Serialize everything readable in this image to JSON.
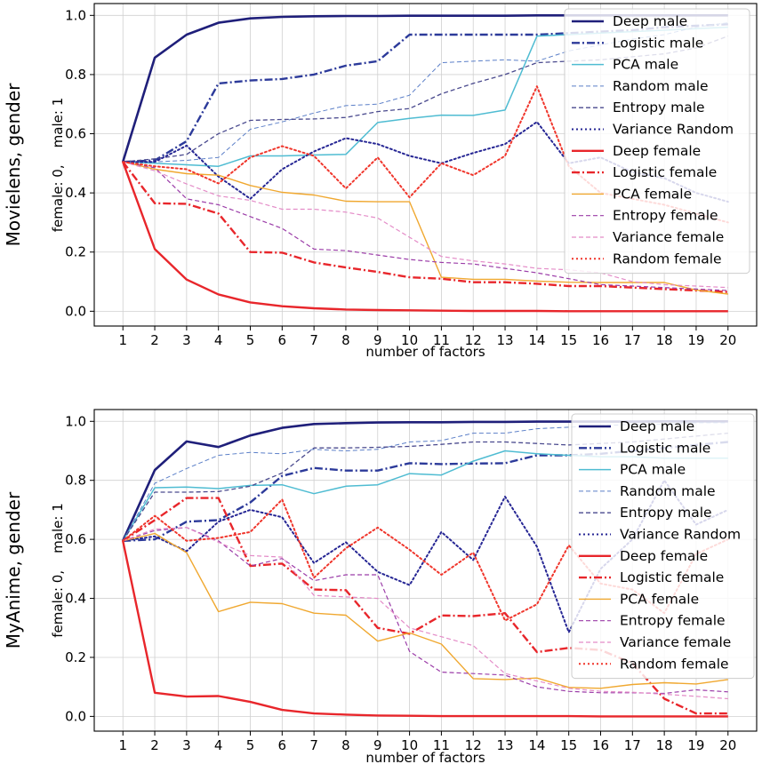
{
  "chart_data": [
    {
      "type": "line",
      "row_label": "Movielens, gender",
      "ylabel": "female: 0,    male: 1",
      "xlabel": "number of factors",
      "x": [
        1,
        2,
        3,
        4,
        5,
        6,
        7,
        8,
        9,
        10,
        11,
        12,
        13,
        14,
        15,
        16,
        17,
        18,
        19,
        20
      ],
      "xlim": [
        0.1,
        20.9
      ],
      "ylim": [
        -0.05,
        1.04
      ],
      "yticks": [
        "0.0",
        "0.2",
        "0.4",
        "0.6",
        "0.8",
        "1.0"
      ],
      "grid": true,
      "legend_position": "top-right",
      "series": [
        {
          "name": "Deep male",
          "color": "#1f1f7a",
          "dash": "solid",
          "width": 2.6,
          "values": [
            0.505,
            0.857,
            0.935,
            0.975,
            0.99,
            0.995,
            0.997,
            0.998,
            0.998,
            0.999,
            0.999,
            0.999,
            0.999,
            1.0,
            1.0,
            1.0,
            1.0,
            1.0,
            1.0,
            1.0
          ]
        },
        {
          "name": "Logistic male",
          "color": "#2c3a9a",
          "dash": "dashdot",
          "width": 2.4,
          "values": [
            0.505,
            0.51,
            0.575,
            0.77,
            0.78,
            0.785,
            0.8,
            0.83,
            0.845,
            0.935,
            0.935,
            0.935,
            0.935,
            0.935,
            0.94,
            0.945,
            0.95,
            0.96,
            0.965,
            0.97
          ]
        },
        {
          "name": "PCA male",
          "color": "#4fbcd2",
          "dash": "solid",
          "width": 1.5,
          "values": [
            0.505,
            0.5,
            0.495,
            0.49,
            0.525,
            0.525,
            0.528,
            0.53,
            0.638,
            0.652,
            0.663,
            0.662,
            0.68,
            0.93,
            0.935,
            0.94,
            0.945,
            0.95,
            0.955,
            0.96
          ]
        },
        {
          "name": "Random male",
          "color": "#5b7fc8",
          "dash": "dashed",
          "width": 1.0,
          "values": [
            0.505,
            0.505,
            0.51,
            0.52,
            0.615,
            0.64,
            0.67,
            0.695,
            0.7,
            0.73,
            0.84,
            0.845,
            0.85,
            0.845,
            0.88,
            0.9,
            0.92,
            0.935,
            0.96,
            0.975
          ]
        },
        {
          "name": "Entropy male",
          "color": "#4a4a8e",
          "dash": "dashed",
          "width": 1.3,
          "values": [
            0.505,
            0.515,
            0.53,
            0.6,
            0.645,
            0.648,
            0.65,
            0.655,
            0.675,
            0.685,
            0.735,
            0.77,
            0.8,
            0.84,
            0.845,
            0.85,
            0.86,
            0.87,
            0.89,
            0.93
          ]
        },
        {
          "name": "Variance Random",
          "color": "#262694",
          "dash": "dotted",
          "width": 2.0,
          "values": [
            0.505,
            0.505,
            0.56,
            0.455,
            0.38,
            0.48,
            0.54,
            0.585,
            0.565,
            0.525,
            0.5,
            0.535,
            0.565,
            0.64,
            0.5,
            0.52,
            0.47,
            0.45,
            0.4,
            0.37
          ]
        },
        {
          "name": "Deep female",
          "color": "#e8262b",
          "dash": "solid",
          "width": 2.4,
          "values": [
            0.505,
            0.21,
            0.107,
            0.057,
            0.03,
            0.017,
            0.01,
            0.006,
            0.004,
            0.003,
            0.002,
            0.001,
            0.001,
            0.001,
            0.0,
            0.0,
            0.0,
            0.0,
            0.0,
            0.0
          ]
        },
        {
          "name": "Logistic female",
          "color": "#e8262b",
          "dash": "dashdot",
          "width": 2.4,
          "values": [
            0.505,
            0.365,
            0.363,
            0.33,
            0.2,
            0.198,
            0.165,
            0.148,
            0.133,
            0.115,
            0.11,
            0.098,
            0.098,
            0.093,
            0.085,
            0.085,
            0.08,
            0.075,
            0.07,
            0.065
          ]
        },
        {
          "name": "PCA female",
          "color": "#f0a830",
          "dash": "solid",
          "width": 1.4,
          "values": [
            0.505,
            0.48,
            0.465,
            0.46,
            0.425,
            0.402,
            0.393,
            0.372,
            0.37,
            0.37,
            0.115,
            0.108,
            0.108,
            0.102,
            0.098,
            0.097,
            0.097,
            0.097,
            0.072,
            0.058
          ]
        },
        {
          "name": "Entropy female",
          "color": "#9b3ca8",
          "dash": "dashed",
          "width": 1.2,
          "values": [
            0.505,
            0.485,
            0.38,
            0.36,
            0.32,
            0.28,
            0.21,
            0.205,
            0.19,
            0.175,
            0.165,
            0.16,
            0.145,
            0.13,
            0.11,
            0.09,
            0.085,
            0.08,
            0.075,
            0.07
          ]
        },
        {
          "name": "Variance female",
          "color": "#e48cc8",
          "dash": "dashed",
          "width": 1.2,
          "values": [
            0.505,
            0.475,
            0.43,
            0.39,
            0.375,
            0.345,
            0.345,
            0.335,
            0.315,
            0.25,
            0.185,
            0.17,
            0.16,
            0.145,
            0.14,
            0.13,
            0.1,
            0.09,
            0.085,
            0.08
          ]
        },
        {
          "name": "Random female",
          "color": "#f0362c",
          "dash": "dotted",
          "width": 2.0,
          "values": [
            0.505,
            0.49,
            0.48,
            0.432,
            0.52,
            0.558,
            0.525,
            0.415,
            0.52,
            0.385,
            0.5,
            0.46,
            0.525,
            0.76,
            0.49,
            0.4,
            0.38,
            0.36,
            0.33,
            0.3
          ]
        }
      ]
    },
    {
      "type": "line",
      "row_label": "MyAnime, gender",
      "ylabel": "female: 0,    male: 1",
      "xlabel": "number of factors",
      "x": [
        1,
        2,
        3,
        4,
        5,
        6,
        7,
        8,
        9,
        10,
        11,
        12,
        13,
        14,
        15,
        16,
        17,
        18,
        19,
        20
      ],
      "xlim": [
        0.1,
        20.9
      ],
      "ylim": [
        -0.05,
        1.04
      ],
      "yticks": [
        "0.0",
        "0.2",
        "0.4",
        "0.6",
        "0.8",
        "1.0"
      ],
      "grid": true,
      "legend_position": "top-right",
      "series": [
        {
          "name": "Deep male",
          "color": "#1f1f7a",
          "dash": "solid",
          "width": 2.6,
          "values": [
            0.595,
            0.835,
            0.932,
            0.913,
            0.952,
            0.978,
            0.991,
            0.994,
            0.996,
            0.997,
            0.997,
            0.998,
            0.998,
            0.999,
            0.999,
            0.999,
            0.999,
            1.0,
            1.0,
            1.0
          ]
        },
        {
          "name": "Logistic male",
          "color": "#2c3a9a",
          "dash": "dashdot",
          "width": 2.4,
          "values": [
            0.595,
            0.6,
            0.66,
            0.665,
            0.725,
            0.815,
            0.842,
            0.833,
            0.833,
            0.858,
            0.855,
            0.857,
            0.858,
            0.885,
            0.885,
            0.89,
            0.9,
            0.91,
            0.92,
            0.93
          ]
        },
        {
          "name": "PCA male",
          "color": "#4fbcd2",
          "dash": "solid",
          "width": 1.5,
          "values": [
            0.595,
            0.775,
            0.777,
            0.772,
            0.783,
            0.785,
            0.755,
            0.78,
            0.785,
            0.823,
            0.818,
            0.865,
            0.9,
            0.89,
            0.885,
            0.88,
            0.88,
            0.875,
            0.875,
            0.875
          ]
        },
        {
          "name": "Random male",
          "color": "#5b7fc8",
          "dash": "dashed",
          "width": 1.0,
          "values": [
            0.595,
            0.79,
            0.84,
            0.885,
            0.895,
            0.89,
            0.905,
            0.9,
            0.905,
            0.93,
            0.935,
            0.96,
            0.96,
            0.975,
            0.98,
            0.985,
            0.99,
            0.99,
            0.995,
            0.995
          ]
        },
        {
          "name": "Entropy male",
          "color": "#4a4a8e",
          "dash": "dashed",
          "width": 1.3,
          "values": [
            0.595,
            0.76,
            0.76,
            0.762,
            0.78,
            0.825,
            0.91,
            0.91,
            0.912,
            0.915,
            0.922,
            0.93,
            0.93,
            0.925,
            0.92,
            0.925,
            0.93,
            0.94,
            0.95,
            0.96
          ]
        },
        {
          "name": "Variance Random",
          "color": "#262694",
          "dash": "dotted",
          "width": 2.0,
          "values": [
            0.595,
            0.61,
            0.56,
            0.66,
            0.7,
            0.675,
            0.52,
            0.59,
            0.49,
            0.445,
            0.625,
            0.53,
            0.745,
            0.575,
            0.285,
            0.5,
            0.6,
            0.8,
            0.65,
            0.7
          ]
        },
        {
          "name": "Deep female",
          "color": "#e8262b",
          "dash": "solid",
          "width": 2.4,
          "values": [
            0.595,
            0.08,
            0.067,
            0.069,
            0.049,
            0.022,
            0.01,
            0.006,
            0.003,
            0.002,
            0.001,
            0.001,
            0.001,
            0.001,
            0.001,
            0.0,
            0.0,
            0.0,
            0.0,
            0.0
          ]
        },
        {
          "name": "Logistic female",
          "color": "#e8262b",
          "dash": "dashdot",
          "width": 2.4,
          "values": [
            0.595,
            0.665,
            0.74,
            0.74,
            0.51,
            0.518,
            0.43,
            0.428,
            0.3,
            0.28,
            0.342,
            0.34,
            0.35,
            0.218,
            0.232,
            0.225,
            0.18,
            0.06,
            0.01,
            0.01
          ]
        },
        {
          "name": "PCA female",
          "color": "#f0a830",
          "dash": "solid",
          "width": 1.4,
          "values": [
            0.595,
            0.62,
            0.555,
            0.355,
            0.387,
            0.382,
            0.35,
            0.343,
            0.255,
            0.283,
            0.245,
            0.128,
            0.125,
            0.13,
            0.098,
            0.095,
            0.108,
            0.114,
            0.11,
            0.125
          ]
        },
        {
          "name": "Entropy female",
          "color": "#9b3ca8",
          "dash": "dashed",
          "width": 1.2,
          "values": [
            0.595,
            0.63,
            0.64,
            0.595,
            0.51,
            0.535,
            0.46,
            0.48,
            0.48,
            0.22,
            0.15,
            0.145,
            0.14,
            0.1,
            0.085,
            0.08,
            0.08,
            0.078,
            0.09,
            0.083
          ]
        },
        {
          "name": "Variance female",
          "color": "#e48cc8",
          "dash": "dashed",
          "width": 1.2,
          "values": [
            0.595,
            0.635,
            0.64,
            0.59,
            0.545,
            0.54,
            0.41,
            0.405,
            0.4,
            0.3,
            0.27,
            0.24,
            0.145,
            0.12,
            0.095,
            0.085,
            0.082,
            0.075,
            0.068,
            0.06
          ]
        },
        {
          "name": "Random female",
          "color": "#f0362c",
          "dash": "dotted",
          "width": 2.0,
          "values": [
            0.595,
            0.68,
            0.595,
            0.605,
            0.625,
            0.735,
            0.47,
            0.57,
            0.64,
            0.565,
            0.48,
            0.555,
            0.325,
            0.38,
            0.58,
            0.45,
            0.43,
            0.35,
            0.55,
            0.6
          ]
        }
      ]
    }
  ]
}
